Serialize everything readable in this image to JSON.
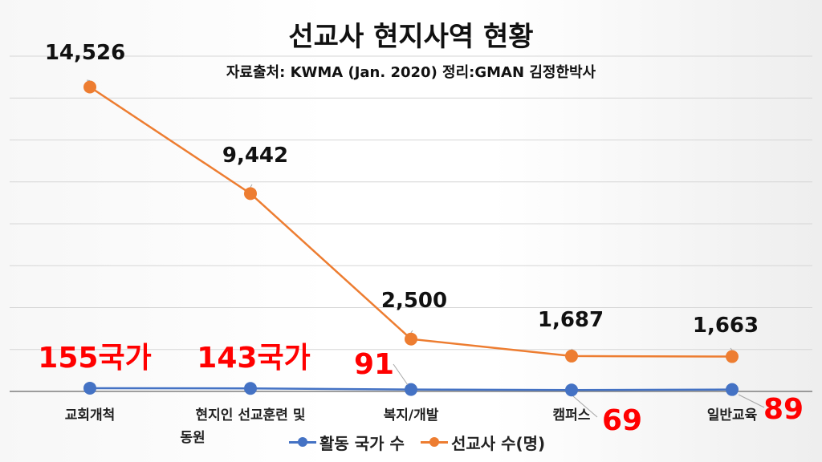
{
  "chart_data": {
    "type": "line",
    "title": "선교사 현지사역 현황",
    "subtitle": "자료출처: KWMA (Jan. 2020) 정리:GMAN 김정한박사",
    "categories": [
      "교회개척",
      "현지인 선교훈련 및 동원",
      "복지/개발",
      "캠퍼스",
      "일반교육"
    ],
    "series": [
      {
        "name": "활동 국가 수",
        "values": [
          155,
          143,
          91,
          69,
          89
        ],
        "labels": [
          "155국가",
          "143국가",
          "91",
          "69",
          "89"
        ],
        "color": "#4472c4"
      },
      {
        "name": "선교사 수(명)",
        "values": [
          14526,
          9442,
          2500,
          1687,
          1663
        ],
        "labels": [
          "14,526",
          "9,442",
          "2,500",
          "1,687",
          "1,663"
        ],
        "color": "#ed7d31"
      }
    ],
    "ylim": [
      0,
      16000
    ],
    "grid": true,
    "legend": "bottom",
    "label_color_countries": "#ff0000"
  }
}
